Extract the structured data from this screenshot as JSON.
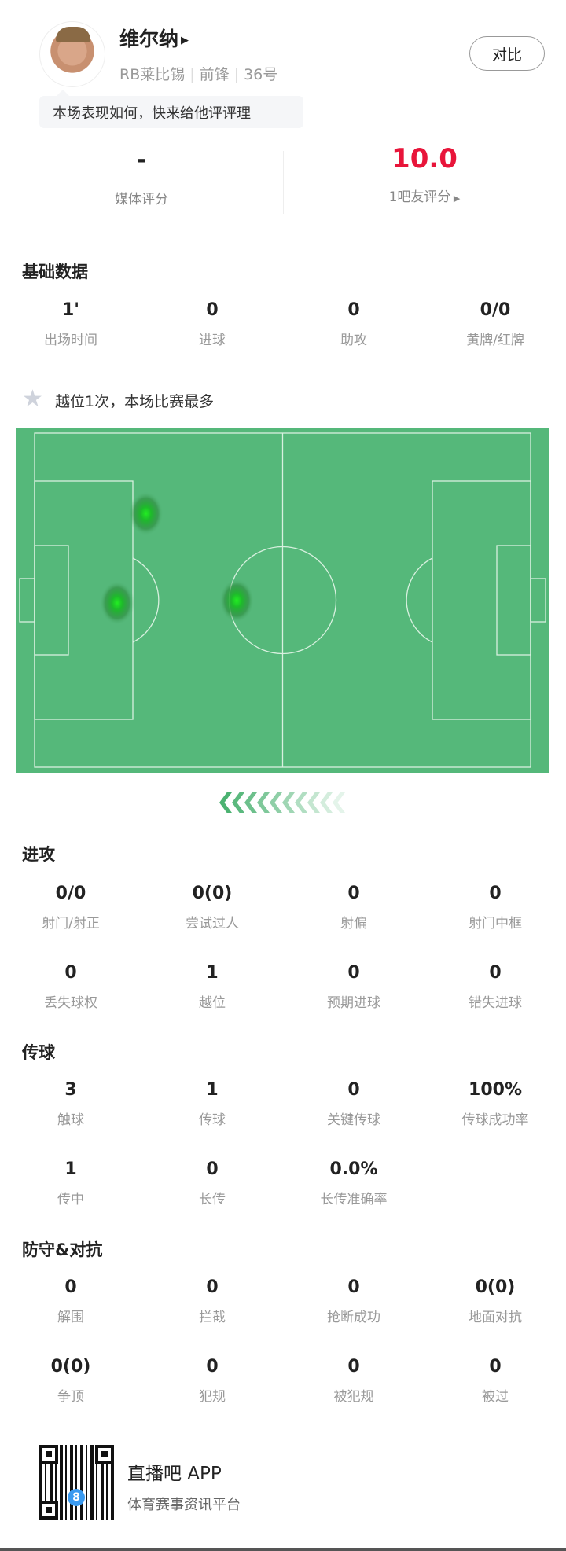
{
  "player": {
    "name": "维尔纳",
    "team": "RB莱比锡",
    "position": "前锋",
    "number": "36号",
    "compare_label": "对比",
    "prompt": "本场表现如何，快来给他评评理"
  },
  "ratings": {
    "media": {
      "value": "-",
      "label": "媒体评分"
    },
    "fans": {
      "value": "10.0",
      "label": "1吧友评分",
      "color": "#e8153a"
    }
  },
  "basic": {
    "title": "基础数据",
    "stats": [
      {
        "v": "1'",
        "l": "出场时间"
      },
      {
        "v": "0",
        "l": "进球"
      },
      {
        "v": "0",
        "l": "助攻"
      },
      {
        "v": "0/0",
        "l": "黄牌/红牌"
      }
    ]
  },
  "highlight": {
    "icon": "star-icon",
    "text": "越位1次，本场比赛最多"
  },
  "heatmap": {
    "pitch_color": "#55b87a",
    "points": [
      {
        "x": 0.244,
        "y": 0.249
      },
      {
        "x": 0.19,
        "y": 0.508
      },
      {
        "x": 0.414,
        "y": 0.501
      }
    ]
  },
  "attack": {
    "title": "进攻",
    "stats": [
      {
        "v": "0/0",
        "l": "射门/射正"
      },
      {
        "v": "0(0)",
        "l": "尝试过人"
      },
      {
        "v": "0",
        "l": "射偏"
      },
      {
        "v": "0",
        "l": "射门中框"
      },
      {
        "v": "0",
        "l": "丢失球权"
      },
      {
        "v": "1",
        "l": "越位"
      },
      {
        "v": "0",
        "l": "预期进球"
      },
      {
        "v": "0",
        "l": "错失进球"
      }
    ]
  },
  "passing": {
    "title": "传球",
    "stats": [
      {
        "v": "3",
        "l": "触球"
      },
      {
        "v": "1",
        "l": "传球"
      },
      {
        "v": "0",
        "l": "关键传球"
      },
      {
        "v": "100%",
        "l": "传球成功率"
      },
      {
        "v": "1",
        "l": "传中"
      },
      {
        "v": "0",
        "l": "长传"
      },
      {
        "v": "0.0%",
        "l": "长传准确率"
      }
    ]
  },
  "defense": {
    "title": "防守&对抗",
    "stats": [
      {
        "v": "0",
        "l": "解围"
      },
      {
        "v": "0",
        "l": "拦截"
      },
      {
        "v": "0",
        "l": "抢断成功"
      },
      {
        "v": "0(0)",
        "l": "地面对抗"
      },
      {
        "v": "0(0)",
        "l": "争顶"
      },
      {
        "v": "0",
        "l": "犯规"
      },
      {
        "v": "0",
        "l": "被犯规"
      },
      {
        "v": "0",
        "l": "被过"
      }
    ]
  },
  "footer": {
    "app_name": "直播吧 APP",
    "slogan": "体育赛事资讯平台",
    "qr_badge": "8"
  }
}
